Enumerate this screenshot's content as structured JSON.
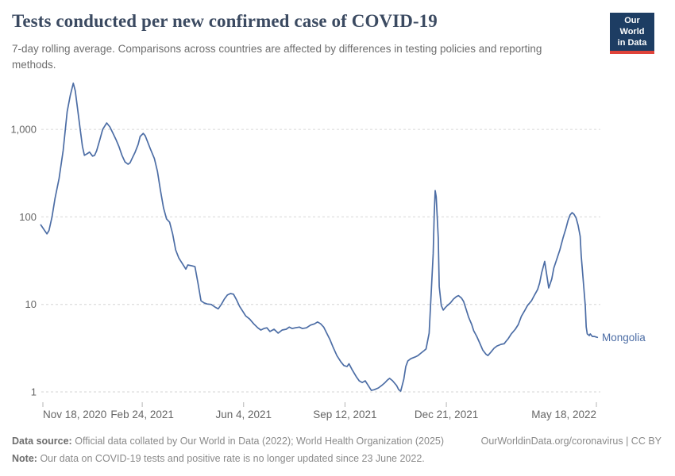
{
  "header": {
    "title": "Tests conducted per new confirmed case of COVID-19",
    "subtitle": "7-day rolling average. Comparisons across countries are affected by differences in testing policies and reporting methods.",
    "logo": {
      "line1": "Our World",
      "line2": "in Data"
    }
  },
  "colors": {
    "line": "#4c6da5",
    "grid": "#d6d6d6",
    "axis_text": "#666666",
    "tick_mark": "#b5b5b5",
    "logo_bg": "#1d3d63",
    "logo_red": "#e0433a",
    "title_text": "#3b4a61"
  },
  "footer": {
    "datasource_label": "Data source:",
    "datasource_text": "Official data collated by Our World in Data (2022); World Health Organization (2025)",
    "link": "OurWorldinData.org/coronavirus | CC BY",
    "note_label": "Note:",
    "note_text": "Our data on COVID-19 tests and positive rate is no longer updated since 23 June 2022."
  },
  "chart_data": {
    "type": "line",
    "title": "Tests conducted per new confirmed case of COVID-19",
    "y_scale": "log",
    "ylim": [
      1,
      3500
    ],
    "grid": "horizontal-dashed",
    "legend_position": "end-of-line-label",
    "y_ticks": [
      {
        "label": "1,000",
        "value": 1000
      },
      {
        "label": "100",
        "value": 100
      },
      {
        "label": "10",
        "value": 10
      },
      {
        "label": "1",
        "value": 1
      }
    ],
    "x_ticks": [
      {
        "label": "Nov 18, 2020",
        "date": "2020-11-18",
        "anchor": "start"
      },
      {
        "label": "Feb 24, 2021",
        "date": "2021-02-24",
        "anchor": "middle"
      },
      {
        "label": "Jun 4, 2021",
        "date": "2021-06-04",
        "anchor": "middle"
      },
      {
        "label": "Sep 12, 2021",
        "date": "2021-09-12",
        "anchor": "middle"
      },
      {
        "label": "Dec 21, 2021",
        "date": "2021-12-21",
        "anchor": "middle"
      },
      {
        "label": "May 18, 2022",
        "date": "2022-05-18",
        "anchor": "end"
      }
    ],
    "series": [
      {
        "name": "Mongolia",
        "color": "#4c6da5",
        "points": [
          [
            "2020-11-16",
            81
          ],
          [
            "2020-11-22",
            64
          ],
          [
            "2020-11-24",
            70
          ],
          [
            "2020-11-27",
            100
          ],
          [
            "2020-11-30",
            163
          ],
          [
            "2020-12-04",
            275
          ],
          [
            "2020-12-08",
            570
          ],
          [
            "2020-12-12",
            1600
          ],
          [
            "2020-12-15",
            2450
          ],
          [
            "2020-12-18",
            3370
          ],
          [
            "2020-12-20",
            2750
          ],
          [
            "2020-12-22",
            1800
          ],
          [
            "2020-12-25",
            970
          ],
          [
            "2020-12-27",
            640
          ],
          [
            "2020-12-29",
            505
          ],
          [
            "2021-01-01",
            530
          ],
          [
            "2021-01-03",
            550
          ],
          [
            "2021-01-06",
            495
          ],
          [
            "2021-01-08",
            505
          ],
          [
            "2021-01-10",
            570
          ],
          [
            "2021-01-13",
            750
          ],
          [
            "2021-01-16",
            1000
          ],
          [
            "2021-01-20",
            1185
          ],
          [
            "2021-01-23",
            1070
          ],
          [
            "2021-01-26",
            910
          ],
          [
            "2021-01-29",
            770
          ],
          [
            "2021-02-01",
            640
          ],
          [
            "2021-02-04",
            505
          ],
          [
            "2021-02-07",
            425
          ],
          [
            "2021-02-10",
            400
          ],
          [
            "2021-02-12",
            415
          ],
          [
            "2021-02-14",
            465
          ],
          [
            "2021-02-17",
            550
          ],
          [
            "2021-02-20",
            675
          ],
          [
            "2021-02-22",
            830
          ],
          [
            "2021-02-25",
            900
          ],
          [
            "2021-02-27",
            845
          ],
          [
            "2021-03-01",
            735
          ],
          [
            "2021-03-04",
            600
          ],
          [
            "2021-03-08",
            465
          ],
          [
            "2021-03-11",
            330
          ],
          [
            "2021-03-14",
            200
          ],
          [
            "2021-03-17",
            127
          ],
          [
            "2021-03-20",
            95
          ],
          [
            "2021-03-23",
            87
          ],
          [
            "2021-03-26",
            64
          ],
          [
            "2021-03-29",
            42
          ],
          [
            "2021-04-01",
            34
          ],
          [
            "2021-04-05",
            28.7
          ],
          [
            "2021-04-08",
            25.3
          ],
          [
            "2021-04-10",
            28.2
          ],
          [
            "2021-04-14",
            27.6
          ],
          [
            "2021-04-17",
            27
          ],
          [
            "2021-04-20",
            17.5
          ],
          [
            "2021-04-23",
            11
          ],
          [
            "2021-04-26",
            10.4
          ],
          [
            "2021-04-29",
            10.1
          ],
          [
            "2021-05-03",
            10
          ],
          [
            "2021-05-07",
            9.3
          ],
          [
            "2021-05-10",
            8.9
          ],
          [
            "2021-05-13",
            10
          ],
          [
            "2021-05-16",
            11.5
          ],
          [
            "2021-05-19",
            12.8
          ],
          [
            "2021-05-22",
            13.3
          ],
          [
            "2021-05-25",
            13.1
          ],
          [
            "2021-05-28",
            11.3
          ],
          [
            "2021-05-31",
            9.5
          ],
          [
            "2021-06-03",
            8.4
          ],
          [
            "2021-06-06",
            7.4
          ],
          [
            "2021-06-10",
            6.8
          ],
          [
            "2021-06-14",
            6.0
          ],
          [
            "2021-06-18",
            5.4
          ],
          [
            "2021-06-21",
            5.1
          ],
          [
            "2021-06-24",
            5.3
          ],
          [
            "2021-06-27",
            5.4
          ],
          [
            "2021-06-30",
            4.9
          ],
          [
            "2021-07-04",
            5.2
          ],
          [
            "2021-07-08",
            4.7
          ],
          [
            "2021-07-12",
            5.1
          ],
          [
            "2021-07-16",
            5.2
          ],
          [
            "2021-07-19",
            5.5
          ],
          [
            "2021-07-22",
            5.3
          ],
          [
            "2021-07-25",
            5.4
          ],
          [
            "2021-07-29",
            5.5
          ],
          [
            "2021-08-01",
            5.3
          ],
          [
            "2021-08-05",
            5.4
          ],
          [
            "2021-08-09",
            5.8
          ],
          [
            "2021-08-13",
            6.0
          ],
          [
            "2021-08-16",
            6.3
          ],
          [
            "2021-08-19",
            6.0
          ],
          [
            "2021-08-22",
            5.5
          ],
          [
            "2021-08-25",
            4.7
          ],
          [
            "2021-08-28",
            4.0
          ],
          [
            "2021-08-31",
            3.3
          ],
          [
            "2021-09-04",
            2.6
          ],
          [
            "2021-09-08",
            2.2
          ],
          [
            "2021-09-11",
            2.0
          ],
          [
            "2021-09-14",
            1.95
          ],
          [
            "2021-09-16",
            2.1
          ],
          [
            "2021-09-19",
            1.8
          ],
          [
            "2021-09-23",
            1.5
          ],
          [
            "2021-09-26",
            1.34
          ],
          [
            "2021-09-29",
            1.28
          ],
          [
            "2021-10-02",
            1.34
          ],
          [
            "2021-10-05",
            1.18
          ],
          [
            "2021-10-08",
            1.04
          ],
          [
            "2021-10-11",
            1.06
          ],
          [
            "2021-10-15",
            1.11
          ],
          [
            "2021-10-18",
            1.18
          ],
          [
            "2021-10-21",
            1.26
          ],
          [
            "2021-10-24",
            1.37
          ],
          [
            "2021-10-26",
            1.43
          ],
          [
            "2021-10-29",
            1.34
          ],
          [
            "2021-11-02",
            1.18
          ],
          [
            "2021-11-04",
            1.06
          ],
          [
            "2021-11-06",
            1.02
          ],
          [
            "2021-11-09",
            1.4
          ],
          [
            "2021-11-11",
            1.95
          ],
          [
            "2021-11-13",
            2.26
          ],
          [
            "2021-11-16",
            2.4
          ],
          [
            "2021-11-20",
            2.5
          ],
          [
            "2021-11-23",
            2.6
          ],
          [
            "2021-11-26",
            2.78
          ],
          [
            "2021-11-29",
            2.96
          ],
          [
            "2021-12-01",
            3.1
          ],
          [
            "2021-12-04",
            4.7
          ],
          [
            "2021-12-06",
            13
          ],
          [
            "2021-12-08",
            38
          ],
          [
            "2021-12-09",
            107
          ],
          [
            "2021-12-10",
            200
          ],
          [
            "2021-12-11",
            170
          ],
          [
            "2021-12-13",
            57
          ],
          [
            "2021-12-14",
            16
          ],
          [
            "2021-12-16",
            9.7
          ],
          [
            "2021-12-18",
            8.6
          ],
          [
            "2021-12-20",
            9.2
          ],
          [
            "2021-12-22",
            9.7
          ],
          [
            "2021-12-25",
            10.4
          ],
          [
            "2021-12-28",
            11.5
          ],
          [
            "2021-12-31",
            12.3
          ],
          [
            "2022-01-02",
            12.6
          ],
          [
            "2022-01-05",
            11.8
          ],
          [
            "2022-01-07",
            10.8
          ],
          [
            "2022-01-09",
            9.2
          ],
          [
            "2022-01-12",
            7.1
          ],
          [
            "2022-01-15",
            5.9
          ],
          [
            "2022-01-17",
            5.0
          ],
          [
            "2022-01-20",
            4.3
          ],
          [
            "2022-01-23",
            3.6
          ],
          [
            "2022-01-26",
            3.0
          ],
          [
            "2022-01-29",
            2.7
          ],
          [
            "2022-01-31",
            2.6
          ],
          [
            "2022-02-03",
            2.85
          ],
          [
            "2022-02-06",
            3.15
          ],
          [
            "2022-02-09",
            3.35
          ],
          [
            "2022-02-13",
            3.5
          ],
          [
            "2022-02-16",
            3.55
          ],
          [
            "2022-02-18",
            3.8
          ],
          [
            "2022-02-20",
            4.05
          ],
          [
            "2022-02-23",
            4.6
          ],
          [
            "2022-02-27",
            5.2
          ],
          [
            "2022-03-02",
            5.9
          ],
          [
            "2022-03-05",
            7.3
          ],
          [
            "2022-03-08",
            8.4
          ],
          [
            "2022-03-11",
            9.7
          ],
          [
            "2022-03-15",
            11
          ],
          [
            "2022-03-18",
            12.8
          ],
          [
            "2022-03-21",
            14.8
          ],
          [
            "2022-03-23",
            17.5
          ],
          [
            "2022-03-25",
            23
          ],
          [
            "2022-03-28",
            31
          ],
          [
            "2022-03-30",
            22
          ],
          [
            "2022-04-01",
            15.4
          ],
          [
            "2022-04-04",
            19.5
          ],
          [
            "2022-04-06",
            26
          ],
          [
            "2022-04-09",
            33
          ],
          [
            "2022-04-12",
            42
          ],
          [
            "2022-04-15",
            57
          ],
          [
            "2022-04-18",
            74
          ],
          [
            "2022-04-20",
            91
          ],
          [
            "2022-04-22",
            105
          ],
          [
            "2022-04-24",
            112
          ],
          [
            "2022-04-26",
            107
          ],
          [
            "2022-04-28",
            97
          ],
          [
            "2022-04-30",
            80
          ],
          [
            "2022-05-02",
            60
          ],
          [
            "2022-05-03",
            36
          ],
          [
            "2022-05-05",
            19
          ],
          [
            "2022-05-07",
            9.7
          ],
          [
            "2022-05-08",
            5.5
          ],
          [
            "2022-05-09",
            4.6
          ],
          [
            "2022-05-11",
            4.4
          ],
          [
            "2022-05-12",
            4.6
          ],
          [
            "2022-05-14",
            4.3
          ],
          [
            "2022-05-16",
            4.3
          ],
          [
            "2022-05-19",
            4.2
          ]
        ]
      }
    ]
  }
}
